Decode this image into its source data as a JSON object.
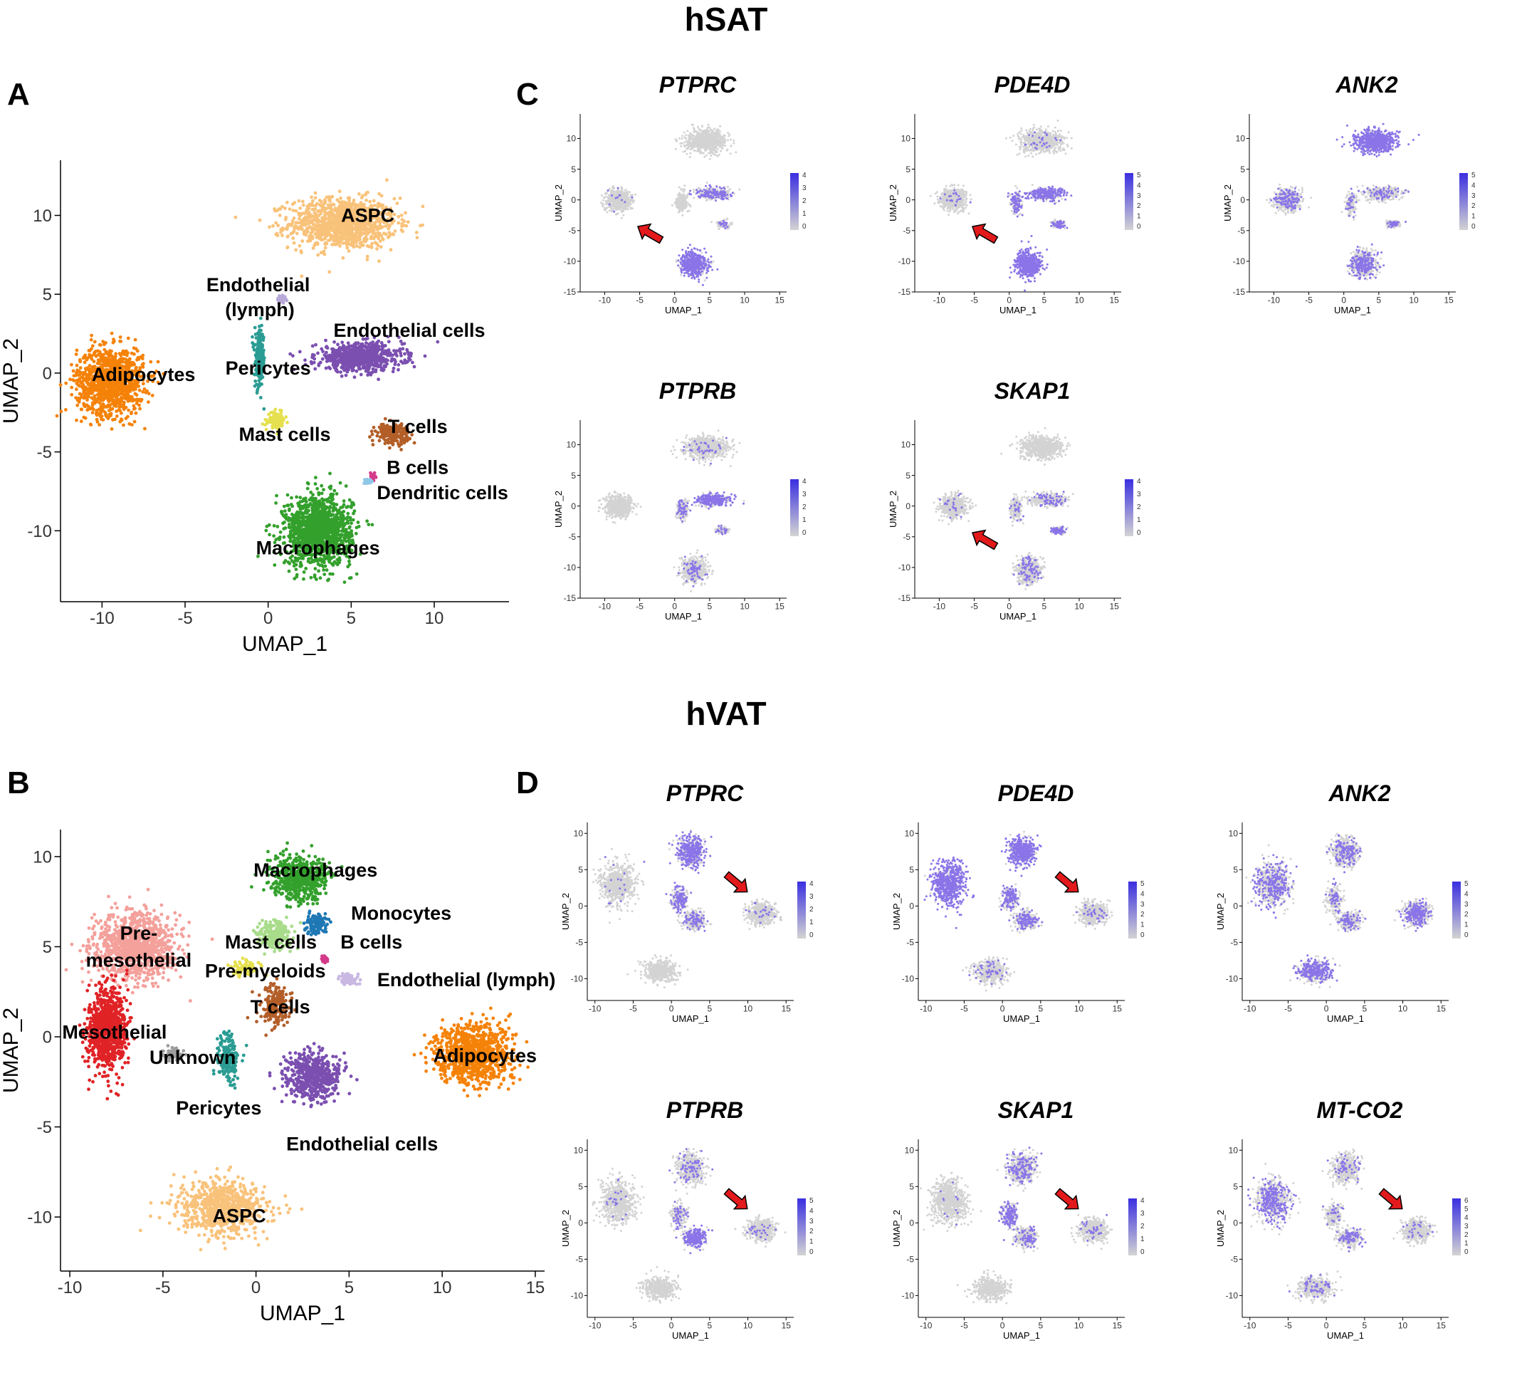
{
  "figure": {
    "top_section_title": "hSAT",
    "bottom_section_title": "hVAT",
    "panel_letters": [
      "A",
      "B",
      "C",
      "D"
    ]
  },
  "chart_data": [
    {
      "id": "A",
      "type": "scatter",
      "title": "",
      "xlabel": "UMAP_1",
      "ylabel": "UMAP_2",
      "xlim": [
        -12.5,
        14.5
      ],
      "ylim": [
        -14.5,
        13.5
      ],
      "xticks": [
        -10,
        -5,
        0,
        5,
        10
      ],
      "yticks": [
        -10,
        -5,
        0,
        5,
        10
      ],
      "clusters": [
        {
          "name": "ASPC",
          "color": "#F9C27A",
          "center": [
            4.5,
            9.5
          ],
          "spread": [
            3.2,
            1.6
          ],
          "count": 1100
        },
        {
          "name": "Adipocytes",
          "color": "#F58208",
          "center": [
            -9.5,
            -0.5
          ],
          "spread": [
            2.0,
            2.1
          ],
          "count": 1100
        },
        {
          "name": "Endothelial (lymph)",
          "color": "#B8A9D9",
          "center": [
            0.8,
            4.7
          ],
          "spread": [
            0.25,
            0.25
          ],
          "count": 40
        },
        {
          "name": "Endothelial cells",
          "color": "#7B4FB0",
          "center": [
            5.5,
            1.0
          ],
          "spread": [
            2.6,
            0.9
          ],
          "count": 650
        },
        {
          "name": "Pericytes",
          "color": "#2A9C93",
          "center": [
            -0.5,
            0.8
          ],
          "spread": [
            0.3,
            1.8
          ],
          "count": 220
        },
        {
          "name": "Mast cells",
          "color": "#E5E04F",
          "center": [
            0.5,
            -3.0
          ],
          "spread": [
            0.5,
            0.5
          ],
          "count": 130
        },
        {
          "name": "T cells",
          "color": "#B35E28",
          "center": [
            7.5,
            -3.8
          ],
          "spread": [
            1.0,
            0.6
          ],
          "count": 220
        },
        {
          "name": "B cells",
          "color": "#D43A8A",
          "center": [
            6.3,
            -6.5
          ],
          "spread": [
            0.15,
            0.2
          ],
          "count": 25
        },
        {
          "name": "Dendritic cells",
          "color": "#8FC7E6",
          "center": [
            6.0,
            -6.9
          ],
          "spread": [
            0.2,
            0.2
          ],
          "count": 25
        },
        {
          "name": "Macrophages",
          "color": "#33A02C",
          "center": [
            3.0,
            -10.0
          ],
          "spread": [
            2.0,
            2.2
          ],
          "count": 1300
        }
      ],
      "labels": [
        {
          "text": "ASPC",
          "at": [
            6.0,
            9.6
          ]
        },
        {
          "text": "Endothelial",
          "at": [
            -0.6,
            5.2
          ]
        },
        {
          "text": "(lymph)",
          "at": [
            -0.5,
            3.6
          ]
        },
        {
          "text": "Endothelial cells",
          "at": [
            8.5,
            2.3
          ]
        },
        {
          "text": "Adipocytes",
          "at": [
            -7.5,
            -0.5
          ]
        },
        {
          "text": "Pericytes",
          "at": [
            0.0,
            -0.1
          ]
        },
        {
          "text": "Mast cells",
          "at": [
            1.0,
            -4.3
          ]
        },
        {
          "text": "T cells",
          "at": [
            9.0,
            -3.8
          ]
        },
        {
          "text": "B cells",
          "at": [
            9.0,
            -6.4
          ]
        },
        {
          "text": "Dendritic cells",
          "at": [
            10.5,
            -8.0
          ]
        },
        {
          "text": "Macrophages",
          "at": [
            3.0,
            -11.5
          ]
        }
      ]
    },
    {
      "id": "B",
      "type": "scatter",
      "title": "",
      "xlabel": "UMAP_1",
      "ylabel": "UMAP_2",
      "xlim": [
        -10.5,
        15.5
      ],
      "ylim": [
        -13,
        11.5
      ],
      "xticks": [
        -10,
        -5,
        0,
        5,
        10,
        15
      ],
      "yticks": [
        -10,
        -5,
        0,
        5,
        10
      ],
      "clusters": [
        {
          "name": "Pre-mesothelial",
          "color": "#F4A09B",
          "center": [
            -6.5,
            5.0
          ],
          "spread": [
            2.2,
            1.8
          ],
          "count": 1100
        },
        {
          "name": "Mesothelial",
          "color": "#E02326",
          "center": [
            -8.0,
            0.5
          ],
          "spread": [
            1.0,
            2.3
          ],
          "count": 850
        },
        {
          "name": "Unknown",
          "color": "#9E9E9E",
          "center": [
            -4.5,
            -1.0
          ],
          "spread": [
            0.6,
            0.4
          ],
          "count": 60
        },
        {
          "name": "Macrophages",
          "color": "#33A02C",
          "center": [
            2.3,
            8.8
          ],
          "spread": [
            1.5,
            1.2
          ],
          "count": 550
        },
        {
          "name": "Mast cells",
          "color": "#A8DC8A",
          "center": [
            1.0,
            5.7
          ],
          "spread": [
            1.0,
            0.8
          ],
          "count": 220
        },
        {
          "name": "Monocytes",
          "color": "#1F78B4",
          "center": [
            3.2,
            6.3
          ],
          "spread": [
            0.6,
            0.6
          ],
          "count": 110
        },
        {
          "name": "B cells",
          "color": "#D43A8A",
          "center": [
            3.7,
            4.3
          ],
          "spread": [
            0.2,
            0.2
          ],
          "count": 30
        },
        {
          "name": "Pre-myeloids",
          "color": "#E5E04F",
          "center": [
            -0.5,
            3.8
          ],
          "spread": [
            0.7,
            0.4
          ],
          "count": 90
        },
        {
          "name": "Endothelial (lymph)",
          "color": "#C9B8E2",
          "center": [
            5.0,
            3.2
          ],
          "spread": [
            0.5,
            0.35
          ],
          "count": 70
        },
        {
          "name": "T cells",
          "color": "#B35E28",
          "center": [
            1.0,
            1.8
          ],
          "spread": [
            0.8,
            1.2
          ],
          "count": 200
        },
        {
          "name": "Pericytes",
          "color": "#2A9C93",
          "center": [
            -1.5,
            -1.2
          ],
          "spread": [
            0.6,
            1.4
          ],
          "count": 180
        },
        {
          "name": "Endothelial cells",
          "color": "#7B4FB0",
          "center": [
            3.0,
            -2.2
          ],
          "spread": [
            1.5,
            1.3
          ],
          "count": 500
        },
        {
          "name": "Adipocytes",
          "color": "#F58208",
          "center": [
            11.7,
            -1.0
          ],
          "spread": [
            2.0,
            1.7
          ],
          "count": 950
        },
        {
          "name": "ASPC",
          "color": "#F9C27A",
          "center": [
            -1.8,
            -9.5
          ],
          "spread": [
            2.3,
            1.5
          ],
          "count": 750
        }
      ],
      "labels": [
        {
          "text": "Macrophages",
          "at": [
            3.2,
            8.9
          ]
        },
        {
          "text": "Monocytes",
          "at": [
            7.8,
            6.5
          ]
        },
        {
          "text": "Pre-",
          "at": [
            -6.3,
            5.4
          ]
        },
        {
          "text": "mesothelial",
          "at": [
            -6.3,
            3.9
          ]
        },
        {
          "text": "Mast cells",
          "at": [
            0.8,
            4.9
          ]
        },
        {
          "text": "B cells",
          "at": [
            6.2,
            4.9
          ]
        },
        {
          "text": "Pre-myeloids",
          "at": [
            0.5,
            3.3
          ]
        },
        {
          "text": "Endothelial (lymph)",
          "at": [
            11.3,
            2.8
          ]
        },
        {
          "text": "T cells",
          "at": [
            1.3,
            1.3
          ]
        },
        {
          "text": "Mesothelial",
          "at": [
            -7.6,
            -0.1
          ]
        },
        {
          "text": "Unknown",
          "at": [
            -3.4,
            -1.5
          ]
        },
        {
          "text": "Adipocytes",
          "at": [
            12.3,
            -1.4
          ]
        },
        {
          "text": "Pericytes",
          "at": [
            -2.0,
            -4.3
          ]
        },
        {
          "text": "Endothelial cells",
          "at": [
            5.7,
            -6.3
          ]
        },
        {
          "text": "ASPC",
          "at": [
            -0.9,
            -10.3
          ]
        }
      ]
    },
    {
      "id": "C",
      "type": "scatter",
      "group_title": "hSAT",
      "xlabel": "UMAP_1",
      "ylabel": "UMAP_2",
      "xlim": [
        -13.5,
        16
      ],
      "ylim": [
        -15,
        14
      ],
      "xticks": [
        -10,
        -5,
        0,
        5,
        10,
        15
      ],
      "yticks": [
        -15,
        -10,
        -5,
        0,
        5,
        10
      ],
      "base_color": "#D3D3D3",
      "high_color": "#3A2FE0",
      "layout_clusters": [
        {
          "center": [
            -8,
            0
          ],
          "spread": [
            1.8,
            1.7
          ],
          "count": 600
        },
        {
          "center": [
            4.5,
            9.5
          ],
          "spread": [
            3.0,
            1.8
          ],
          "count": 700
        },
        {
          "center": [
            5.5,
            1.0
          ],
          "spread": [
            2.5,
            1.0
          ],
          "count": 350
        },
        {
          "center": [
            1.0,
            -0.5
          ],
          "spread": [
            0.8,
            1.8
          ],
          "count": 180
        },
        {
          "center": [
            7.0,
            -4.0
          ],
          "spread": [
            1.0,
            0.6
          ],
          "count": 120
        },
        {
          "center": [
            2.8,
            -10.5
          ],
          "spread": [
            1.8,
            2.0
          ],
          "count": 600
        }
      ],
      "panels": [
        {
          "gene": "PTPRC",
          "legend": [
            "4",
            "3",
            "2",
            "1",
            "0"
          ],
          "arrow": true,
          "highlight": [
            0.02,
            0.0,
            0.35,
            0.0,
            0.1,
            0.75,
            0.5
          ]
        },
        {
          "gene": "PDE4D",
          "legend": [
            "5",
            "4",
            "3",
            "2",
            "1",
            "0"
          ],
          "arrow": true,
          "highlight": [
            0.03,
            0.05,
            0.55,
            0.4,
            0.4,
            0.95,
            0.6
          ]
        },
        {
          "gene": "ANK2",
          "legend": [
            "5",
            "4",
            "3",
            "2",
            "1",
            "0"
          ],
          "arrow": false,
          "highlight": [
            0.2,
            0.9,
            0.15,
            0.15,
            0.2,
            0.3,
            0.0
          ]
        },
        {
          "gene": "PTPRB",
          "legend": [
            "4",
            "3",
            "2",
            "1",
            "0"
          ],
          "arrow": false,
          "highlight": [
            0.0,
            0.05,
            0.7,
            0.2,
            0.15,
            0.12,
            0.0
          ]
        },
        {
          "gene": "SKAP1",
          "legend": [
            "4",
            "3",
            "2",
            "1",
            "0"
          ],
          "arrow": true,
          "highlight": [
            0.03,
            0.0,
            0.15,
            0.1,
            0.6,
            0.12,
            0.4
          ]
        }
      ]
    },
    {
      "id": "D",
      "type": "scatter",
      "group_title": "hVAT",
      "xlabel": "UMAP_1",
      "ylabel": "UMAP_2",
      "xlim": [
        -11,
        16
      ],
      "ylim": [
        -13,
        11.5
      ],
      "xticks": [
        -10,
        -5,
        0,
        5,
        10,
        15
      ],
      "yticks": [
        -10,
        -5,
        0,
        5,
        10
      ],
      "base_color": "#D3D3D3",
      "high_color": "#3A2FE0",
      "layout_clusters": [
        {
          "center": [
            -7,
            3
          ],
          "spread": [
            2.2,
            2.8
          ],
          "count": 700
        },
        {
          "center": [
            2.5,
            7.5
          ],
          "spread": [
            1.8,
            2.0
          ],
          "count": 500
        },
        {
          "center": [
            1.0,
            1.0
          ],
          "spread": [
            1.0,
            1.6
          ],
          "count": 220
        },
        {
          "center": [
            3.0,
            -2.0
          ],
          "spread": [
            1.5,
            1.3
          ],
          "count": 300
        },
        {
          "center": [
            11.8,
            -1.0
          ],
          "spread": [
            1.8,
            1.5
          ],
          "count": 500
        },
        {
          "center": [
            -1.5,
            -9.0
          ],
          "spread": [
            2.2,
            1.5
          ],
          "count": 450
        }
      ],
      "panels": [
        {
          "gene": "PTPRC",
          "legend": [
            "4",
            "3",
            "2",
            "1",
            "0"
          ],
          "arrow": true,
          "highlight": [
            0.02,
            0.65,
            0.5,
            0.3,
            0.05,
            0.0,
            0.4
          ]
        },
        {
          "gene": "PDE4D",
          "legend": [
            "5",
            "4",
            "3",
            "2",
            "1",
            "0"
          ],
          "arrow": true,
          "highlight": [
            0.9,
            0.8,
            0.5,
            0.4,
            0.05,
            0.12,
            0.5
          ]
        },
        {
          "gene": "ANK2",
          "legend": [
            "5",
            "4",
            "3",
            "2",
            "1",
            "0"
          ],
          "arrow": false,
          "highlight": [
            0.35,
            0.25,
            0.2,
            0.2,
            0.4,
            0.55,
            0.0
          ]
        },
        {
          "gene": "PTPRB",
          "legend": [
            "5",
            "4",
            "3",
            "2",
            "1",
            "0"
          ],
          "arrow": true,
          "highlight": [
            0.03,
            0.15,
            0.2,
            0.7,
            0.05,
            0.0,
            0.3
          ]
        },
        {
          "gene": "SKAP1",
          "legend": [
            "4",
            "3",
            "2",
            "1",
            "0"
          ],
          "arrow": true,
          "highlight": [
            0.02,
            0.25,
            0.6,
            0.25,
            0.05,
            0.0,
            0.3
          ]
        },
        {
          "gene": "MT-CO2",
          "legend": [
            "6",
            "5",
            "4",
            "3",
            "2",
            "1",
            "0"
          ],
          "arrow": true,
          "highlight": [
            0.35,
            0.12,
            0.1,
            0.25,
            0.05,
            0.1,
            0.4
          ]
        }
      ]
    }
  ]
}
